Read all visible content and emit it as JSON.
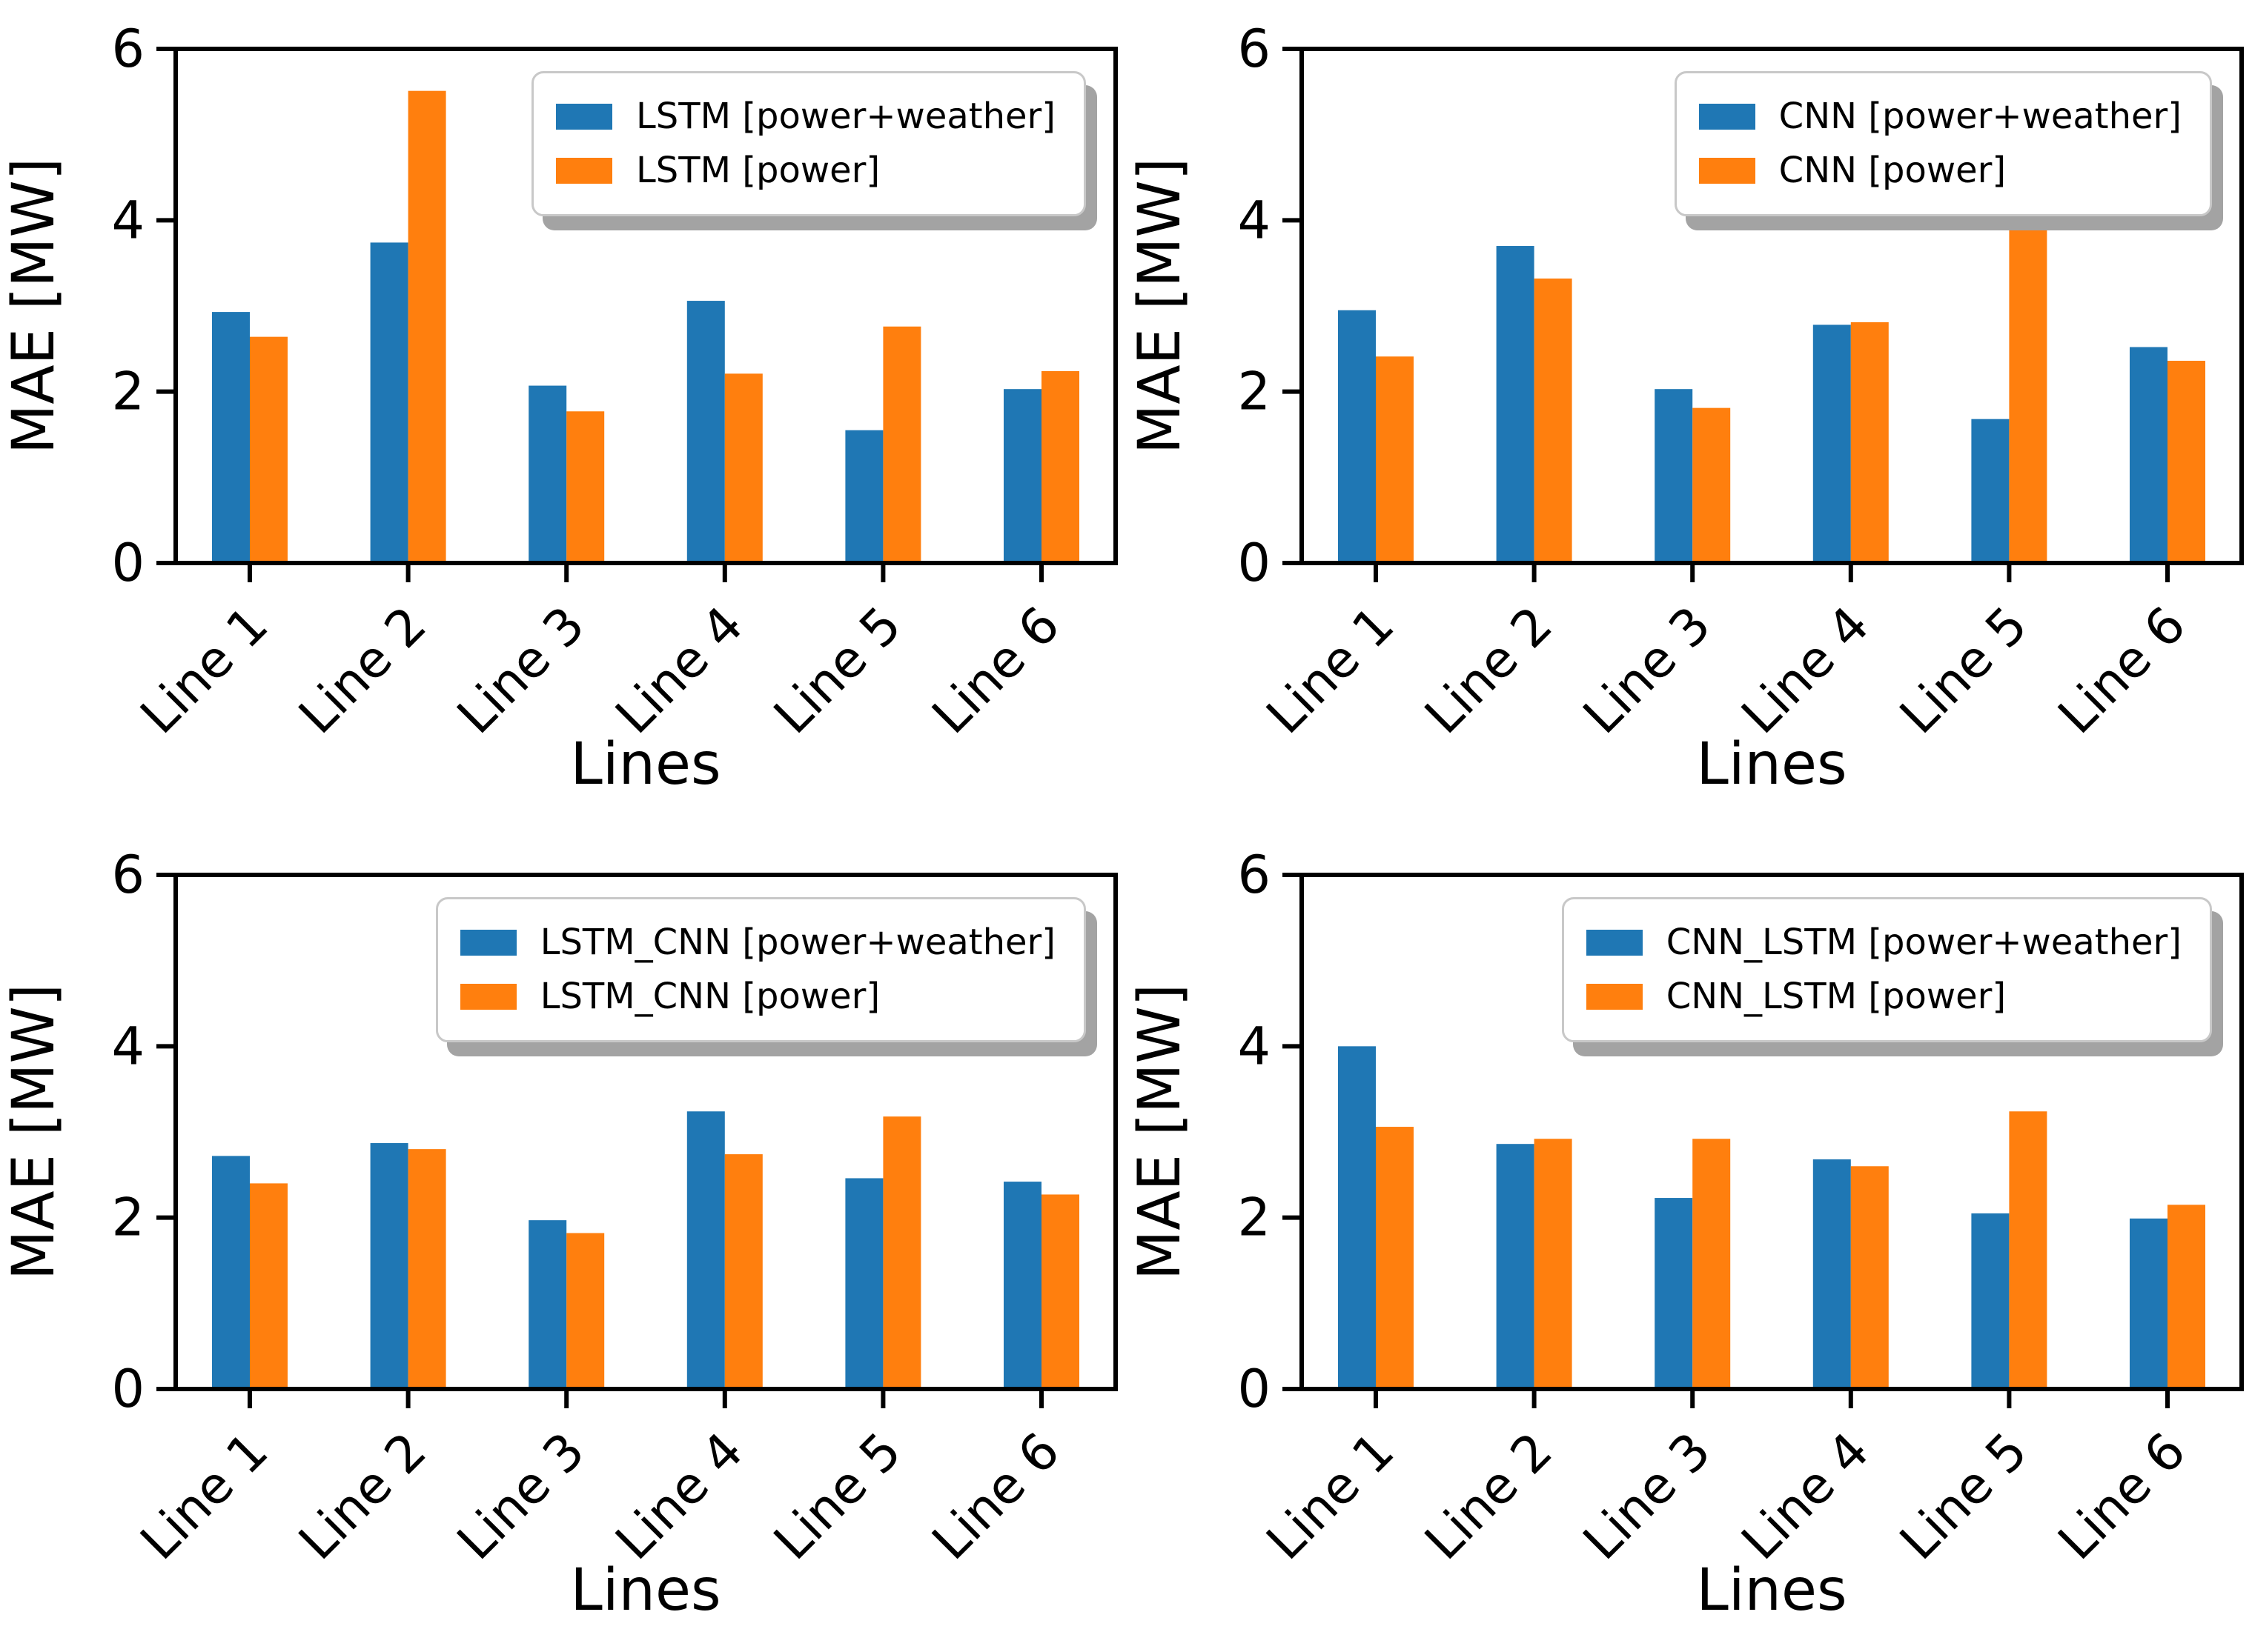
{
  "figure": {
    "background": "#ffffff",
    "layout": "2x2 grid of bar charts comparing model MAE per line"
  },
  "colors": {
    "power_weather_series": "#1f77b4",
    "power_series": "#ff7f0e",
    "axis": "#000000",
    "legend_edge": "#c8c8c8",
    "legend_shadow": "#a3a3a3",
    "legend_background": "#ffffff"
  },
  "chart_data": [
    {
      "type": "bar",
      "position": "top-left",
      "title": "",
      "xlabel": "Lines",
      "ylabel": "MAE [MW]",
      "ylim": [
        0,
        6
      ],
      "yticks": [
        0,
        2,
        4,
        6
      ],
      "grid": false,
      "legend_position": "upper right",
      "categories": [
        "Line 1",
        "Line 2",
        "Line 3",
        "Line 4",
        "Line 5",
        "Line 6"
      ],
      "series": [
        {
          "name": "LSTM [power+weather]",
          "color": "#1f77b4",
          "values": [
            2.93,
            3.74,
            2.07,
            3.06,
            1.55,
            2.03
          ]
        },
        {
          "name": "LSTM [power]",
          "color": "#ff7f0e",
          "values": [
            2.64,
            5.51,
            1.77,
            2.21,
            2.76,
            2.24
          ]
        }
      ]
    },
    {
      "type": "bar",
      "position": "top-right",
      "title": "",
      "xlabel": "Lines",
      "ylabel": "MAE [MW]",
      "ylim": [
        0,
        6
      ],
      "yticks": [
        0,
        2,
        4,
        6
      ],
      "grid": false,
      "legend_position": "upper right",
      "categories": [
        "Line 1",
        "Line 2",
        "Line 3",
        "Line 4",
        "Line 5",
        "Line 6"
      ],
      "series": [
        {
          "name": "CNN [power+weather]",
          "color": "#1f77b4",
          "values": [
            2.95,
            3.7,
            2.03,
            2.78,
            1.68,
            2.52
          ]
        },
        {
          "name": "CNN [power]",
          "color": "#ff7f0e",
          "values": [
            2.41,
            3.32,
            1.81,
            2.81,
            3.97,
            2.36
          ]
        }
      ]
    },
    {
      "type": "bar",
      "position": "bottom-left",
      "title": "",
      "xlabel": "Lines",
      "ylabel": "MAE [MW]",
      "ylim": [
        0,
        6
      ],
      "yticks": [
        0,
        2,
        4,
        6
      ],
      "grid": false,
      "legend_position": "upper right",
      "categories": [
        "Line 1",
        "Line 2",
        "Line 3",
        "Line 4",
        "Line 5",
        "Line 6"
      ],
      "series": [
        {
          "name": "LSTM_CNN [power+weather]",
          "color": "#1f77b4",
          "values": [
            2.72,
            2.87,
            1.97,
            3.24,
            2.46,
            2.42
          ]
        },
        {
          "name": "LSTM_CNN [power]",
          "color": "#ff7f0e",
          "values": [
            2.4,
            2.8,
            1.82,
            2.74,
            3.18,
            2.27
          ]
        }
      ]
    },
    {
      "type": "bar",
      "position": "bottom-right",
      "title": "",
      "xlabel": "Lines",
      "ylabel": "MAE [MW]",
      "ylim": [
        0,
        6
      ],
      "yticks": [
        0,
        2,
        4,
        6
      ],
      "grid": false,
      "legend_position": "upper right",
      "categories": [
        "Line 1",
        "Line 2",
        "Line 3",
        "Line 4",
        "Line 5",
        "Line 6"
      ],
      "series": [
        {
          "name": "CNN_LSTM [power+weather]",
          "color": "#1f77b4",
          "values": [
            4.0,
            2.86,
            2.23,
            2.68,
            2.05,
            1.99
          ]
        },
        {
          "name": "CNN_LSTM [power]",
          "color": "#ff7f0e",
          "values": [
            3.06,
            2.92,
            2.92,
            2.6,
            3.24,
            2.15
          ]
        }
      ]
    }
  ]
}
